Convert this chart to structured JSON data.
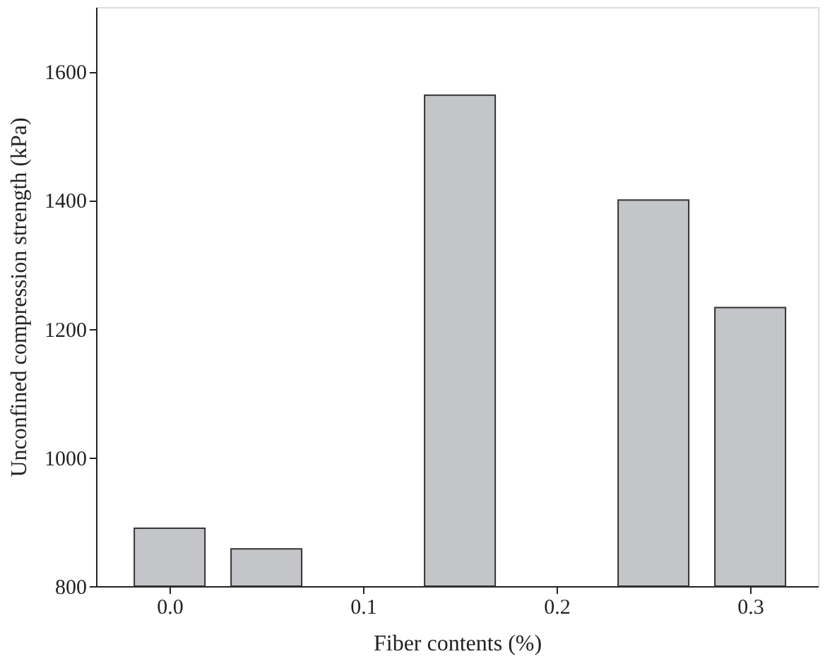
{
  "chart_data": {
    "type": "bar",
    "xlabel": "Fiber contents (%)",
    "ylabel": "Unconfined compression strength (kPa)",
    "x": [
      0.0,
      0.05,
      0.15,
      0.25,
      0.3
    ],
    "values": [
      890,
      858,
      1563,
      1400,
      1233
    ],
    "color": "#c4c5c9",
    "xlim": [
      -0.038,
      0.335
    ],
    "xticks": [
      {
        "value": 0.0,
        "label": "0.0"
      },
      {
        "value": 0.1,
        "label": "0.1"
      },
      {
        "value": 0.2,
        "label": "0.2"
      },
      {
        "value": 0.3,
        "label": "0.3"
      }
    ],
    "ylim": [
      800,
      1700
    ],
    "yticks": [
      800,
      1000,
      1200,
      1400,
      1600
    ],
    "grid": false
  }
}
